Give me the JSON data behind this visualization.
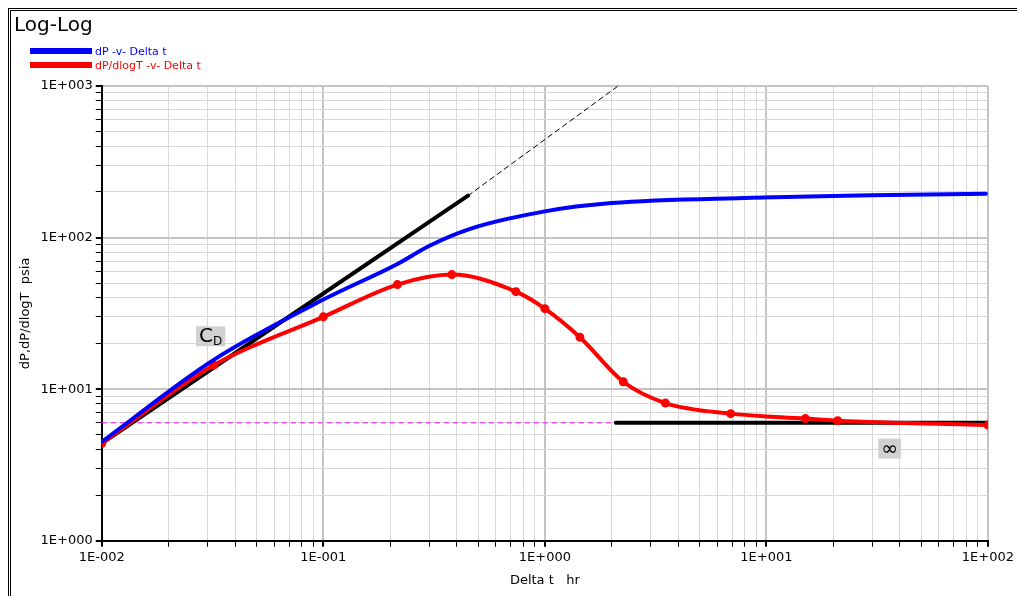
{
  "chart_data": {
    "type": "line",
    "title": "Log-Log",
    "xlabel": "Delta t   hr",
    "ylabel": "dP,dP/dlogT  psia",
    "log": "xy",
    "grid": true,
    "legend": "top left",
    "xlim": [
      0.01,
      100
    ],
    "ylim": [
      1,
      1000
    ],
    "xticks": [
      {
        "value": 0.01,
        "label": "1E-002"
      },
      {
        "value": 0.02,
        "label": null
      },
      {
        "value": 0.03,
        "label": null
      },
      {
        "value": 0.04,
        "label": null
      },
      {
        "value": 0.05,
        "label": null
      },
      {
        "value": 0.06,
        "label": null
      },
      {
        "value": 0.07,
        "label": null
      },
      {
        "value": 0.08,
        "label": null
      },
      {
        "value": 0.09,
        "label": null
      },
      {
        "value": 0.1,
        "label": "1E-001"
      },
      {
        "value": 0.2,
        "label": null
      },
      {
        "value": 0.3,
        "label": null
      },
      {
        "value": 0.4,
        "label": null
      },
      {
        "value": 0.5,
        "label": null
      },
      {
        "value": 0.6,
        "label": null
      },
      {
        "value": 0.7,
        "label": null
      },
      {
        "value": 0.8,
        "label": null
      },
      {
        "value": 0.9,
        "label": null
      },
      {
        "value": 1,
        "label": "1E+000"
      },
      {
        "value": 2,
        "label": null
      },
      {
        "value": 3,
        "label": null
      },
      {
        "value": 4,
        "label": null
      },
      {
        "value": 5,
        "label": null
      },
      {
        "value": 6,
        "label": null
      },
      {
        "value": 7,
        "label": null
      },
      {
        "value": 8,
        "label": null
      },
      {
        "value": 9,
        "label": null
      },
      {
        "value": 10,
        "label": "1E+001"
      },
      {
        "value": 20,
        "label": null
      },
      {
        "value": 30,
        "label": null
      },
      {
        "value": 40,
        "label": null
      },
      {
        "value": 50,
        "label": null
      },
      {
        "value": 60,
        "label": null
      },
      {
        "value": 70,
        "label": null
      },
      {
        "value": 80,
        "label": null
      },
      {
        "value": 90,
        "label": null
      },
      {
        "value": 100,
        "label": "1E+002"
      }
    ],
    "yticks": [
      {
        "value": 1,
        "label": "1E+000"
      },
      {
        "value": 2,
        "label": null
      },
      {
        "value": 3,
        "label": null
      },
      {
        "value": 4,
        "label": null
      },
      {
        "value": 5,
        "label": null
      },
      {
        "value": 6,
        "label": null
      },
      {
        "value": 7,
        "label": null
      },
      {
        "value": 8,
        "label": null
      },
      {
        "value": 9,
        "label": null
      },
      {
        "value": 10,
        "label": "1E+001"
      },
      {
        "value": 20,
        "label": null
      },
      {
        "value": 30,
        "label": null
      },
      {
        "value": 40,
        "label": null
      },
      {
        "value": 50,
        "label": null
      },
      {
        "value": 60,
        "label": null
      },
      {
        "value": 70,
        "label": null
      },
      {
        "value": 80,
        "label": null
      },
      {
        "value": 90,
        "label": null
      },
      {
        "value": 100,
        "label": "1E+002"
      },
      {
        "value": 200,
        "label": null
      },
      {
        "value": 300,
        "label": null
      },
      {
        "value": 400,
        "label": null
      },
      {
        "value": 500,
        "label": null
      },
      {
        "value": 600,
        "label": null
      },
      {
        "value": 700,
        "label": null
      },
      {
        "value": 800,
        "label": null
      },
      {
        "value": 900,
        "label": null
      },
      {
        "value": 1000,
        "label": "1E+003"
      }
    ],
    "series": [
      {
        "name": "dP -v- Delta t",
        "color": "#0000ff",
        "marker": "none",
        "x": [
          0.01,
          0.032,
          0.1,
          0.216,
          0.3,
          0.45,
          1,
          2,
          8.6,
          30,
          98
        ],
        "values": [
          4.5,
          15.6,
          39,
          67,
          88,
          113,
          149,
          169,
          183,
          190,
          195
        ]
      },
      {
        "name": "dP/dlogT -v- Delta t",
        "color": "#ff0000",
        "marker": "circle",
        "x": [
          0.01,
          0.032,
          0.1,
          0.216,
          0.38,
          0.74,
          1,
          1.44,
          2.26,
          3.5,
          6.9,
          15,
          21,
          100
        ],
        "values": [
          4.4,
          14.4,
          30,
          49,
          57,
          44,
          34,
          22,
          11.2,
          8.1,
          6.9,
          6.4,
          6.2,
          5.8
        ]
      },
      {
        "color": "#000000",
        "marker": "none",
        "x": [
          0.01,
          0.45
        ],
        "values": [
          4.4,
          189
        ]
      },
      {
        "color": "#000000",
        "marker": "none",
        "line_style": "dashed",
        "x": [
          0.45,
          2.14
        ],
        "values": [
          189,
          1000
        ]
      },
      {
        "color": "#000000",
        "marker": "none",
        "x": [
          2.09,
          100
        ],
        "values": [
          6,
          6
        ]
      }
    ],
    "ref_lines": [
      {
        "axis": "y",
        "value": 6,
        "color": "#ff00ff",
        "line_style": "dashed"
      }
    ],
    "annotations": [
      {
        "text": "C$_{D}$",
        "x": 0.031,
        "y": 22
      },
      {
        "text": "∞",
        "x": 36,
        "y": 4
      }
    ]
  }
}
